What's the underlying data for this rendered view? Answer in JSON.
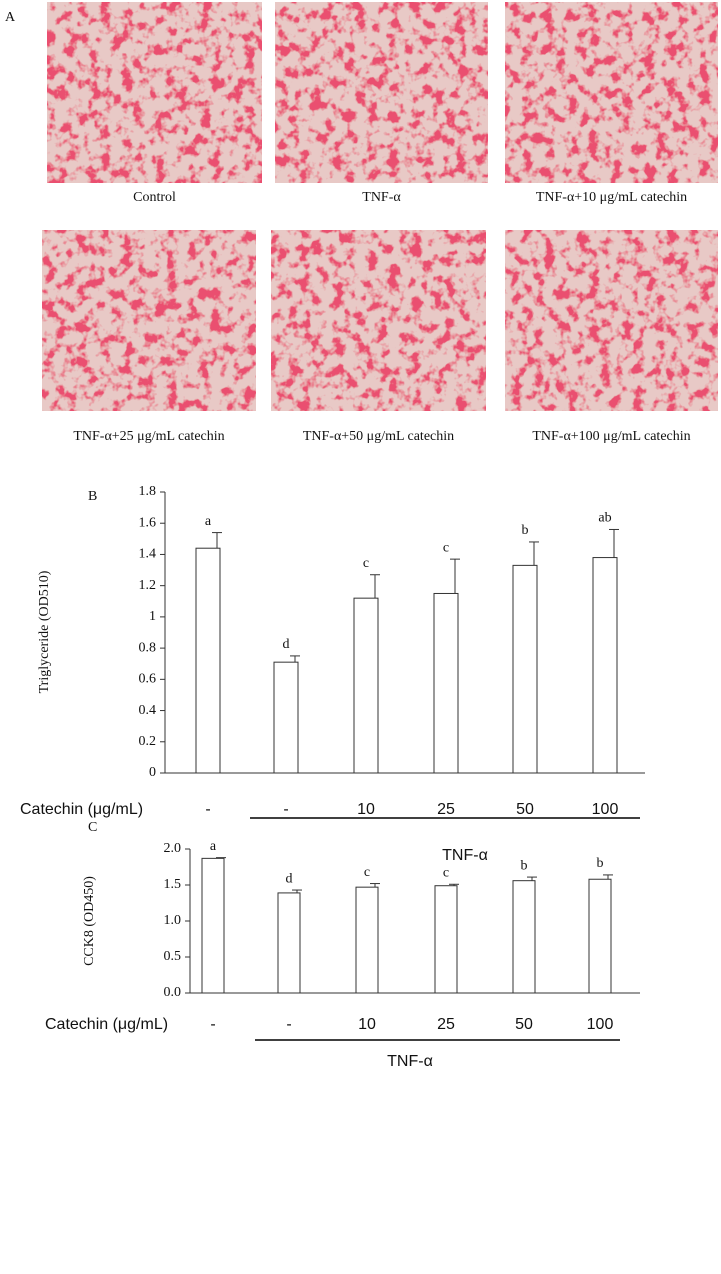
{
  "figure": {
    "panel_a": {
      "label": "A",
      "captions": [
        "Control",
        "TNF-α",
        "TNF-α+10 μg/mL catechin",
        "TNF-α+25 μg/mL catechin",
        "TNF-α+50 μg/mL catechin",
        "TNF-α+100 μg/mL catechin"
      ]
    }
  },
  "chart_data": [
    {
      "type": "bar",
      "panel_label": "B",
      "y_label": "Triglyceride (OD510)",
      "x_label": "Catechin (μg/mL)",
      "group_label": "TNF-α",
      "categories": [
        "-",
        "-",
        "10",
        "25",
        "50",
        "100"
      ],
      "values": [
        1.44,
        0.71,
        1.12,
        1.15,
        1.33,
        1.38
      ],
      "errors": [
        0.1,
        0.04,
        0.15,
        0.22,
        0.15,
        0.18
      ],
      "letters": [
        "a",
        "d",
        "c",
        "c",
        "b",
        "ab"
      ],
      "color": "#ffffff",
      "ylim": [
        0,
        1.8
      ],
      "yticks": [
        0,
        0.2,
        0.4,
        0.6,
        0.8,
        1,
        1.2,
        1.4,
        1.6,
        1.8
      ]
    },
    {
      "type": "bar",
      "panel_label": "C",
      "y_label": "CCK8 (OD450)",
      "x_label": "Catechin (μg/mL)",
      "group_label": "TNF-α",
      "categories": [
        "-",
        "-",
        "10",
        "25",
        "50",
        "100"
      ],
      "values": [
        1.87,
        1.39,
        1.47,
        1.49,
        1.56,
        1.58
      ],
      "errors": [
        0.01,
        0.04,
        0.05,
        0.02,
        0.05,
        0.06
      ],
      "letters": [
        "a",
        "d",
        "c",
        "c",
        "b",
        "b"
      ],
      "color": "#ffffff",
      "ylim": [
        0,
        2.0
      ],
      "yticks": [
        {
          "value": 0,
          "label": "0.0"
        },
        {
          "value": 0.5,
          "label": "0.5"
        },
        {
          "value": 1,
          "label": "1.0"
        },
        {
          "value": 1.5,
          "label": "1.5"
        },
        {
          "value": 2,
          "label": "2.0"
        }
      ]
    }
  ]
}
